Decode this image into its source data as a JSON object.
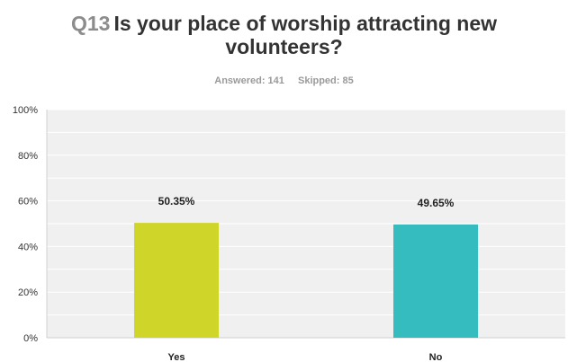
{
  "chart_title": {
    "number": "Q13",
    "line1": "Is your place of worship attracting new",
    "line2": "volunteers?"
  },
  "meta": {
    "answered": "Answered: 141",
    "skipped": "Skipped: 85"
  },
  "chart_data": {
    "type": "bar",
    "title": "Q13 Is your place of worship attracting new volunteers?",
    "categories": [
      "Yes",
      "No"
    ],
    "values": [
      50.35,
      49.65
    ],
    "data_labels": [
      "50.35%",
      "49.65%"
    ],
    "colors": [
      "#d0d52a",
      "#35bcbf"
    ],
    "ylim": [
      0,
      100
    ],
    "y_ticks": [
      0,
      20,
      40,
      60,
      80,
      100
    ],
    "y_tick_labels": [
      "0%",
      "20%",
      "40%",
      "60%",
      "80%",
      "100%"
    ],
    "xlabel": "",
    "ylabel": "",
    "grid": true,
    "background_color": "#f0f0f0"
  }
}
